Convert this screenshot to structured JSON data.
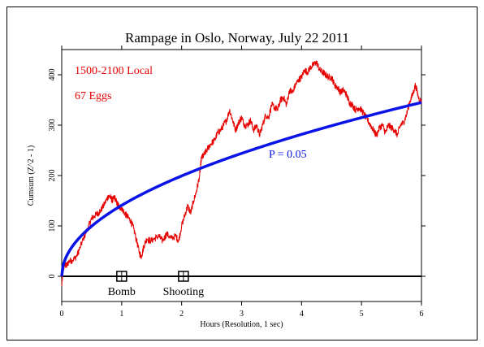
{
  "chart_data": {
    "type": "line",
    "title": "Rampage in Oslo, Norway, July 22 2011",
    "xlabel": "Hours (Resolution, 1 sec)",
    "ylabel": "Cumsum (Z^2 - 1)",
    "xlim": [
      0,
      6
    ],
    "ylim": [
      -50,
      450
    ],
    "x_ticks": [
      "0",
      "1",
      "2",
      "3",
      "4",
      "5",
      "6"
    ],
    "y_ticks": [
      "0",
      "100",
      "200",
      "300",
      "400"
    ],
    "annotations": {
      "time_range": "1500-2100 Local",
      "eggs": "67 Eggs",
      "probability": "P = 0.05"
    },
    "events": [
      {
        "label": "Bomb",
        "x": 1.0,
        "y": 0
      },
      {
        "label": "Shooting",
        "x": 2.03,
        "y": 0
      }
    ],
    "series": [
      {
        "color": "#e60000",
        "x": [
          0,
          0.02,
          0.05,
          0.08,
          0.12,
          0.18,
          0.25,
          0.3,
          0.38,
          0.45,
          0.5,
          0.55,
          0.6,
          0.65,
          0.72,
          0.78,
          0.82,
          0.85,
          0.88,
          0.92,
          0.95,
          1.0,
          1.05,
          1.1,
          1.15,
          1.2,
          1.25,
          1.3,
          1.33,
          1.37,
          1.42,
          1.48,
          1.55,
          1.62,
          1.68,
          1.75,
          1.82,
          1.9,
          1.95,
          2.0,
          2.05,
          2.1,
          2.15,
          2.2,
          2.25,
          2.3,
          2.33,
          2.37,
          2.42,
          2.48,
          2.55,
          2.6,
          2.65,
          2.7,
          2.75,
          2.8,
          2.85,
          2.9,
          2.95,
          3.0,
          3.05,
          3.1,
          3.15,
          3.2,
          3.25,
          3.3,
          3.35,
          3.4,
          3.45,
          3.5,
          3.55,
          3.6,
          3.65,
          3.7,
          3.75,
          3.8,
          3.85,
          3.9,
          3.95,
          4.0,
          4.05,
          4.1,
          4.15,
          4.2,
          4.25,
          4.3,
          4.35,
          4.4,
          4.45,
          4.5,
          4.55,
          4.6,
          4.65,
          4.7,
          4.75,
          4.8,
          4.85,
          4.9,
          4.95,
          5.0,
          5.05,
          5.1,
          5.15,
          5.2,
          5.25,
          5.3,
          5.35,
          5.4,
          5.45,
          5.5,
          5.55,
          5.6,
          5.65,
          5.7,
          5.75,
          5.8,
          5.85,
          5.9,
          5.95,
          6.0
        ],
        "y": [
          -20,
          10,
          25,
          20,
          30,
          32,
          40,
          55,
          80,
          100,
          115,
          120,
          125,
          130,
          145,
          160,
          155,
          150,
          158,
          145,
          140,
          135,
          125,
          118,
          110,
          95,
          70,
          45,
          40,
          60,
          75,
          70,
          75,
          80,
          70,
          85,
          75,
          80,
          70,
          100,
          120,
          140,
          125,
          150,
          170,
          200,
          235,
          240,
          250,
          262,
          270,
          285,
          290,
          300,
          310,
          330,
          310,
          290,
          305,
          315,
          300,
          300,
          310,
          290,
          300,
          280,
          300,
          320,
          315,
          340,
          335,
          330,
          350,
          355,
          340,
          370,
          365,
          380,
          390,
          395,
          410,
          405,
          415,
          420,
          425,
          410,
          405,
          400,
          395,
          395,
          380,
          375,
          365,
          370,
          360,
          345,
          340,
          330,
          335,
          330,
          320,
          310,
          300,
          290,
          280,
          295,
          300,
          285,
          300,
          295,
          290,
          280,
          300,
          305,
          320,
          345,
          360,
          380,
          355,
          345
        ]
      },
      {
        "color": "#0a14e6",
        "curve": "sqrt",
        "x": [
          0,
          0.05,
          0.1,
          0.2,
          0.3,
          0.5,
          0.75,
          1.0,
          1.5,
          2.0,
          2.5,
          3.0,
          3.5,
          4.0,
          4.5,
          5.0,
          5.5,
          6.0
        ],
        "y": [
          0,
          32,
          45,
          63,
          77,
          99,
          122,
          141,
          172,
          199,
          222,
          244,
          263,
          281,
          298,
          314,
          330,
          345
        ]
      }
    ]
  },
  "colors": {
    "cumsum": "#e60000",
    "probability": "#0a14e6",
    "axes": "#000000"
  }
}
